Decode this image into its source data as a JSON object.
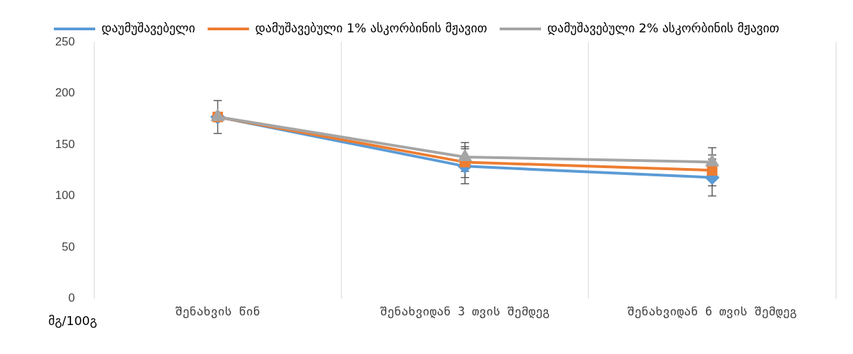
{
  "chart_data": {
    "type": "line",
    "ylabel": "მგ/100გ",
    "categories": [
      "შენახვის წინ",
      "შენახვიდან 3 თვის შემდეგ",
      "შენახვიდან 6 თვის შემდეგ"
    ],
    "series": [
      {
        "name": "დაუმუშავებელი",
        "color": "#5b9bd5",
        "marker": "diamond",
        "values": [
          177,
          129,
          118
        ],
        "errors": [
          16,
          17,
          18
        ]
      },
      {
        "name": "დამუშავებული 1% ასკორბინის მჟავით",
        "color": "#ed7d31",
        "marker": "square",
        "values": [
          177,
          133,
          125
        ],
        "errors": [
          16,
          15,
          15
        ]
      },
      {
        "name": "დამუშავებული 2% ასკორბინის მჟავით",
        "color": "#a5a5a5",
        "marker": "triangle",
        "values": [
          177,
          138,
          133
        ],
        "errors": [
          16,
          14,
          14
        ]
      }
    ],
    "ylim": [
      0,
      250
    ],
    "yticks": [
      0,
      50,
      100,
      150,
      200,
      250
    ],
    "grid": "x",
    "legend": "top left"
  }
}
